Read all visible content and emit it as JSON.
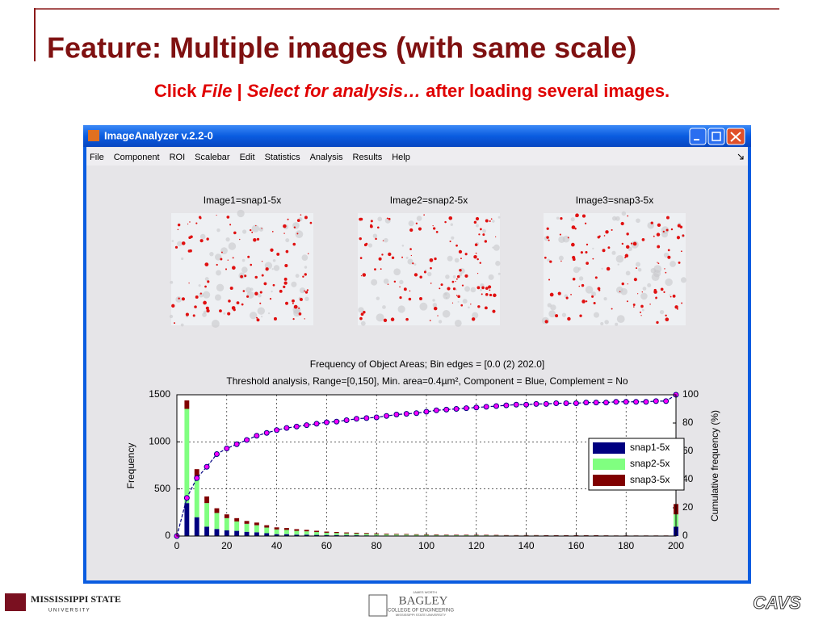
{
  "slide": {
    "title": "Feature: Multiple images (with same scale)",
    "subtitle": [
      "Click ",
      "File",
      " | ",
      "Select for analysis…",
      " after loading several images."
    ]
  },
  "window": {
    "title": "ImageAnalyzer v.2.2-0",
    "menu": [
      "File",
      "Component",
      "ROI",
      "Scalebar",
      "Edit",
      "Statistics",
      "Analysis",
      "Results",
      "Help"
    ]
  },
  "images": [
    "Image1=snap1-5x",
    "Image2=snap2-5x",
    "Image3=snap3-5x"
  ],
  "chart_data": {
    "type": "bar",
    "stacked": true,
    "title": "Frequency of Object Areas; Bin edges = [0.0 (2) 202.0]",
    "subtitle": "Threshold analysis, Range=[0,150], Min. area=0.4µm², Component = Blue, Complement = No",
    "ylabel": "Frequency",
    "y2label": "Cumulative frequency (%)",
    "x": [
      0,
      4,
      8,
      12,
      16,
      20,
      24,
      28,
      32,
      36,
      40,
      44,
      48,
      52,
      56,
      60,
      64,
      68,
      72,
      76,
      80,
      84,
      88,
      92,
      96,
      100,
      104,
      108,
      112,
      116,
      120,
      124,
      128,
      132,
      136,
      140,
      144,
      148,
      152,
      156,
      160,
      164,
      168,
      172,
      176,
      180,
      184,
      188,
      192,
      196,
      200
    ],
    "series": [
      {
        "name": "snap1-5x",
        "color": "#000080",
        "values": [
          0,
          350,
          200,
          100,
          75,
          60,
          55,
          45,
          40,
          30,
          20,
          20,
          15,
          15,
          12,
          10,
          10,
          8,
          8,
          7,
          6,
          5,
          5,
          5,
          4,
          4,
          4,
          3,
          3,
          3,
          3,
          3,
          2,
          2,
          2,
          2,
          2,
          2,
          2,
          2,
          2,
          2,
          1,
          1,
          1,
          1,
          1,
          1,
          1,
          1,
          100
        ]
      },
      {
        "name": "snap2-5x",
        "color": "#80ff80",
        "values": [
          0,
          1000,
          420,
          250,
          170,
          130,
          100,
          85,
          75,
          60,
          50,
          45,
          40,
          35,
          30,
          25,
          22,
          20,
          18,
          16,
          14,
          12,
          11,
          10,
          9,
          8,
          7,
          7,
          6,
          6,
          5,
          5,
          5,
          4,
          4,
          4,
          4,
          3,
          3,
          3,
          3,
          3,
          3,
          3,
          2,
          2,
          2,
          2,
          2,
          2,
          130
        ]
      },
      {
        "name": "snap3-5x",
        "color": "#800000",
        "values": [
          0,
          90,
          90,
          70,
          50,
          40,
          35,
          30,
          28,
          25,
          22,
          20,
          18,
          16,
          14,
          12,
          11,
          10,
          9,
          9,
          8,
          8,
          7,
          7,
          6,
          6,
          6,
          5,
          5,
          5,
          5,
          5,
          5,
          4,
          4,
          4,
          4,
          4,
          4,
          4,
          4,
          4,
          4,
          3,
          3,
          3,
          3,
          3,
          3,
          3,
          110
        ]
      }
    ],
    "cumulative": {
      "axis": "y2",
      "color": "#ff00ff",
      "values": [
        0,
        27,
        41,
        49,
        58,
        62,
        65,
        68,
        71,
        73,
        75,
        76.5,
        77.5,
        78.5,
        79.5,
        80.5,
        81,
        82,
        83,
        83.5,
        84,
        85,
        86,
        86.5,
        87,
        88,
        89,
        89.5,
        90,
        90.5,
        91,
        91.5,
        92,
        92.5,
        93,
        93,
        93.5,
        93.5,
        94,
        94,
        94,
        94.5,
        94.5,
        94.5,
        95,
        95,
        95,
        95,
        95.5,
        95.5,
        100
      ]
    },
    "xlim": [
      0,
      200
    ],
    "xticks": [
      0,
      20,
      40,
      60,
      80,
      100,
      120,
      140,
      160,
      180,
      200
    ],
    "ylim": [
      0,
      1500
    ],
    "yticks": [
      0,
      500,
      1000,
      1500
    ],
    "y2lim": [
      0,
      100
    ],
    "y2ticks": [
      0,
      20,
      40,
      60,
      80,
      100
    ],
    "grid": true,
    "legend": "right"
  },
  "footer": {
    "left": [
      "MISSISSIPPI STATE",
      "U N I V E R S I T Y"
    ],
    "center": [
      "JAMES WORTH",
      "BAGLEY",
      "COLLEGE OF ENGINEERING",
      "MISSISSIPPI STATE UNIVERSITY"
    ],
    "right": "CAVS"
  }
}
